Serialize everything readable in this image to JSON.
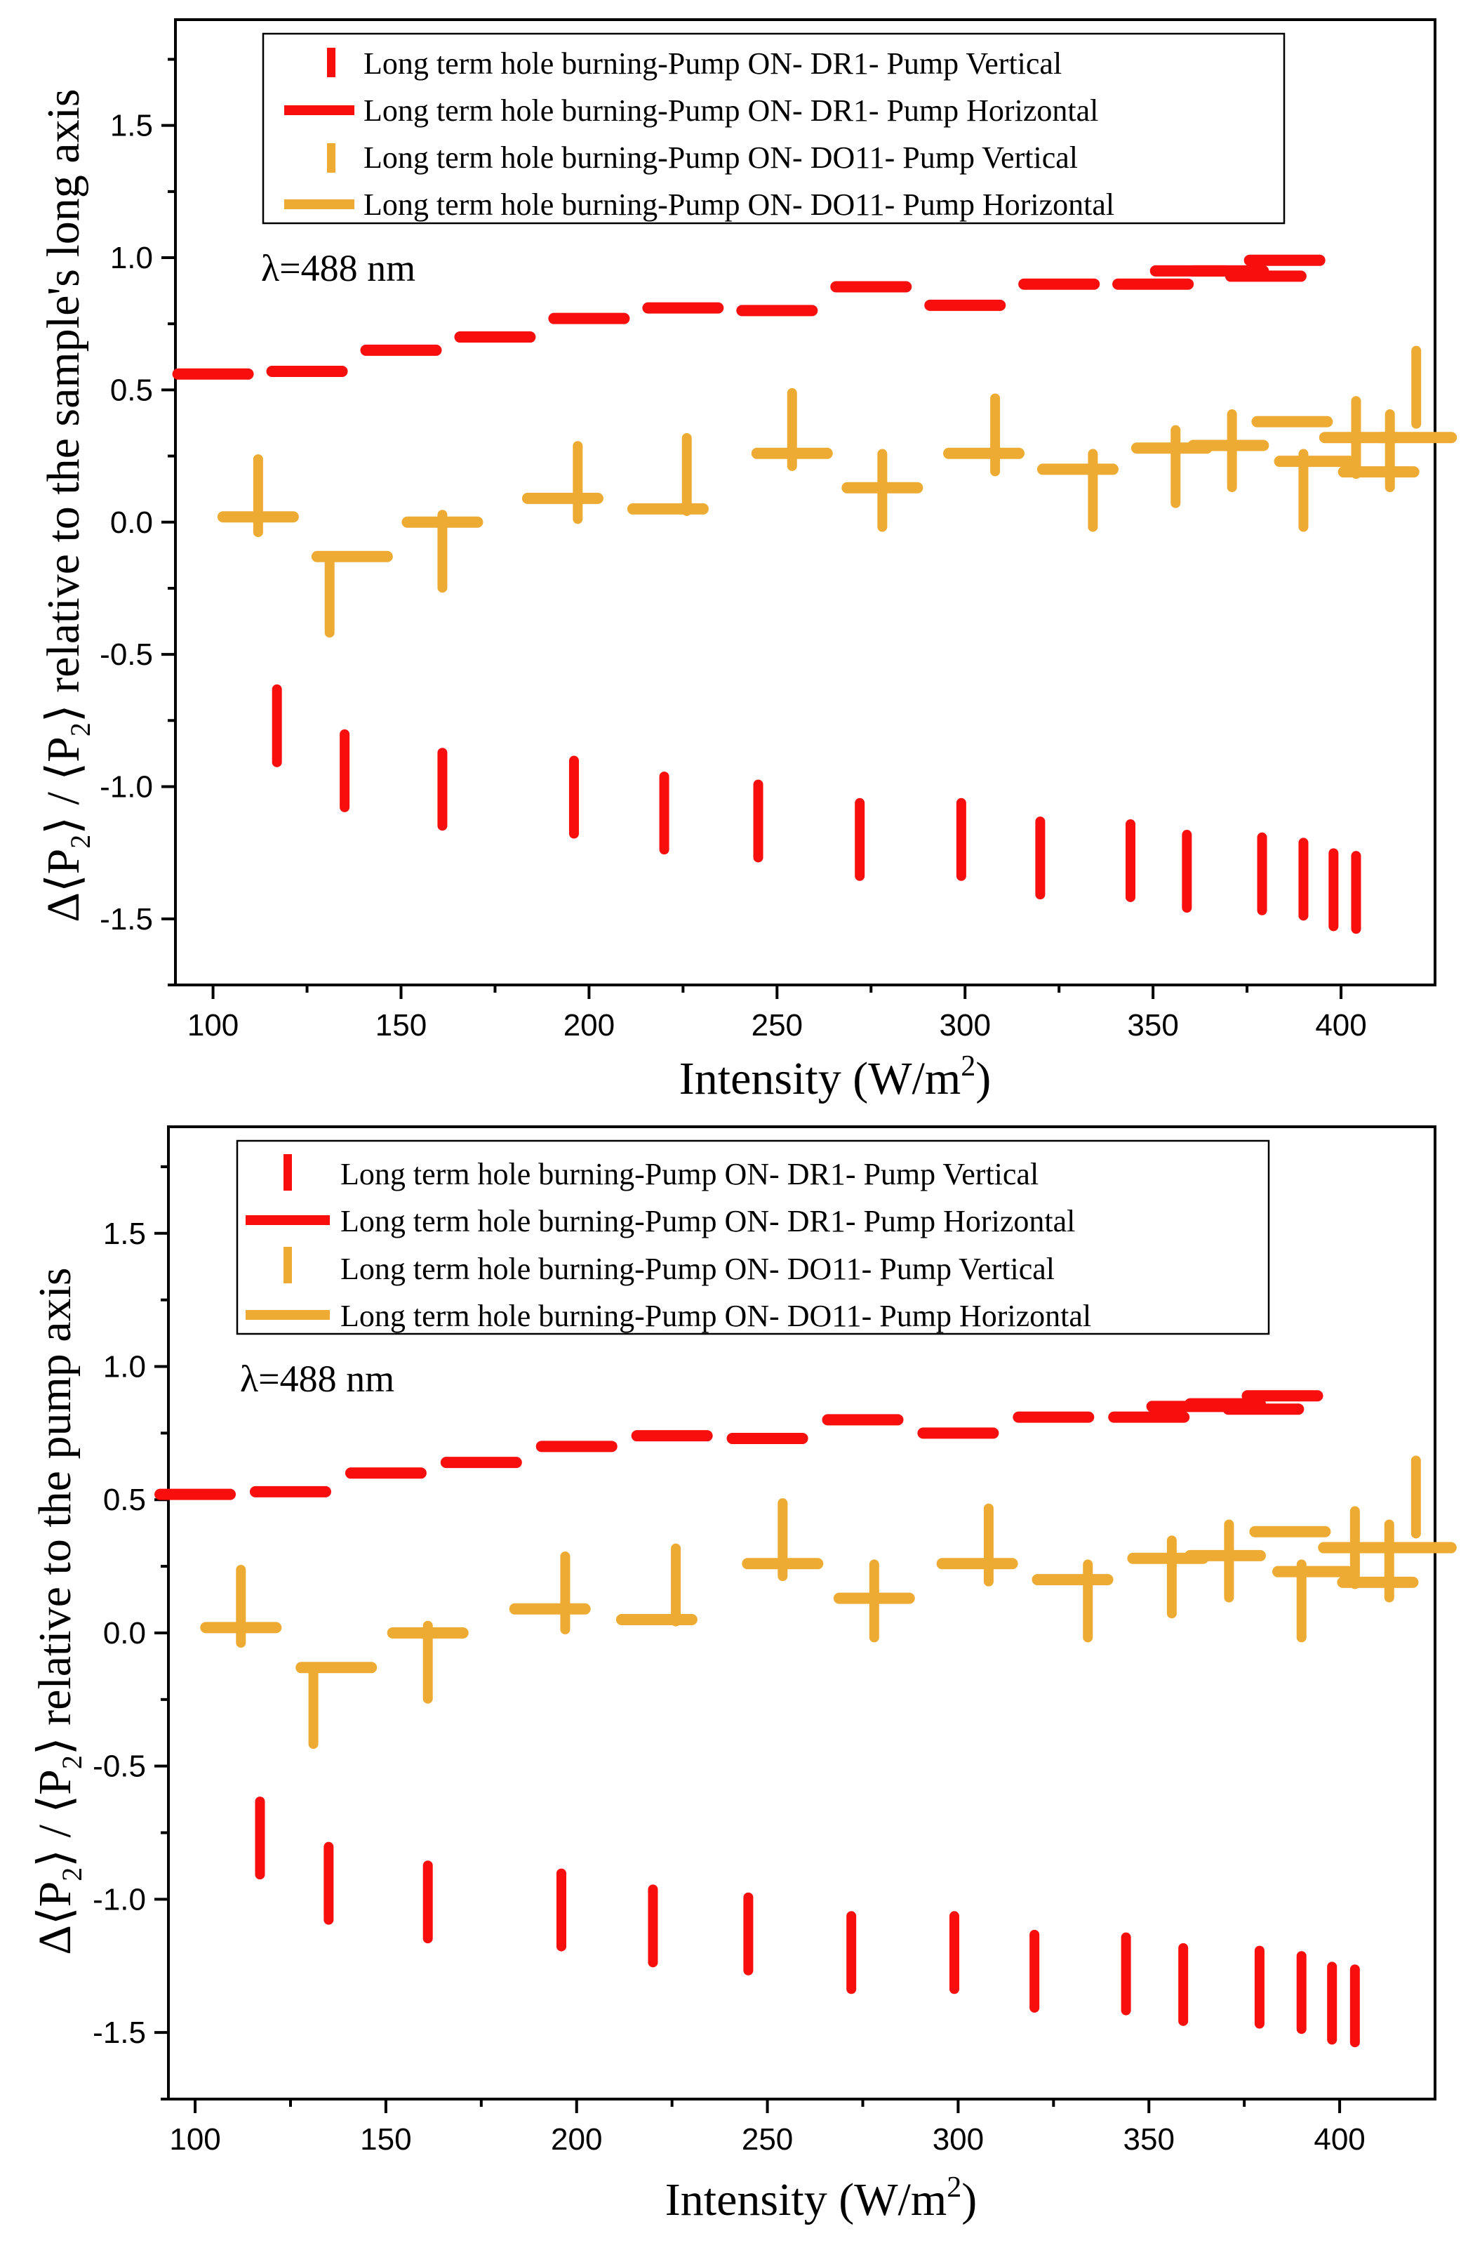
{
  "colors": {
    "dr1": "#f90e0e",
    "do11": "#eeab34",
    "axis": "#000000"
  },
  "legend_labels": [
    "Long term hole burning-Pump ON- DR1- Pump Vertical",
    "Long term hole burning-Pump ON- DR1- Pump Horizontal",
    "Long term hole burning-Pump ON- DO11- Pump Vertical",
    "Long term hole burning-Pump ON- DO11- Pump Horizontal"
  ],
  "chart_data": [
    {
      "type": "scatter",
      "title": "",
      "xlabel": "Intensity (W/m²)",
      "xlabel_base": "Intensity (W/m",
      "xlabel_sup": "2",
      "xlabel_tail": ")",
      "ylabel": "Δ⟨P₂⟩ / ⟨P₂⟩ relative to the sample's long axis",
      "ylabel_a": "Δ⟨P",
      "ylabel_a_sub": "2",
      "ylabel_b": "⟩ / ⟨P",
      "ylabel_b_sub": "2",
      "ylabel_c": "⟩ relative to the sample's long axis",
      "annotation": "λ=488 nm",
      "xlim": [
        90,
        425
      ],
      "ylim": [
        -1.75,
        1.9
      ],
      "xticks": [
        100,
        150,
        200,
        250,
        300,
        350,
        400
      ],
      "xtick_labels": [
        "100",
        "150",
        "200",
        "250",
        "300",
        "350",
        "400"
      ],
      "yticks": [
        -1.5,
        -1.0,
        -0.5,
        0.0,
        0.5,
        1.0,
        1.5
      ],
      "ytick_labels": [
        "-1.5",
        "-1.0",
        "-0.5",
        "0.0",
        "0.5",
        "1.0",
        "1.5"
      ],
      "series": [
        {
          "name": "Long term hole burning-Pump ON- DR1- Pump Vertical",
          "marker": "vbar",
          "x": [
            117,
            135,
            161,
            196,
            220,
            245,
            272,
            299,
            320,
            344,
            359,
            379,
            390,
            398,
            404
          ],
          "y": [
            -0.77,
            -0.94,
            -1.01,
            -1.04,
            -1.1,
            -1.13,
            -1.2,
            -1.2,
            -1.27,
            -1.28,
            -1.32,
            -1.33,
            -1.35,
            -1.39,
            -1.4
          ]
        },
        {
          "name": "Long term hole burning-Pump ON- DR1- Pump Horizontal",
          "marker": "hbar",
          "x": [
            100,
            125,
            150,
            175,
            200,
            225,
            250,
            275,
            300,
            325,
            350,
            360,
            370,
            380,
            385
          ],
          "y": [
            0.56,
            0.57,
            0.65,
            0.7,
            0.77,
            0.81,
            0.8,
            0.89,
            0.82,
            0.9,
            0.9,
            0.95,
            0.95,
            0.93,
            0.99
          ]
        },
        {
          "name": "Long term hole burning-Pump ON- DO11- Pump Vertical",
          "marker": "vbar",
          "x": [
            112,
            131,
            161,
            197,
            226,
            254,
            278,
            308,
            334,
            356,
            371,
            390,
            404,
            413,
            420
          ],
          "y": [
            0.1,
            -0.28,
            -0.11,
            0.15,
            0.18,
            0.35,
            0.12,
            0.33,
            0.12,
            0.21,
            0.27,
            0.12,
            0.32,
            0.27,
            0.51
          ]
        },
        {
          "name": "Long term hole burning-Pump ON- DO11- Pump Horizontal",
          "marker": "hbar",
          "x": [
            112,
            137,
            161,
            193,
            221,
            254,
            278,
            305,
            330,
            355,
            370,
            387,
            393,
            405,
            410,
            420
          ],
          "y": [
            0.02,
            -0.13,
            0.0,
            0.09,
            0.05,
            0.26,
            0.13,
            0.26,
            0.2,
            0.28,
            0.29,
            0.38,
            0.23,
            0.32,
            0.19,
            0.32
          ]
        }
      ]
    },
    {
      "type": "scatter",
      "title": "",
      "xlabel": "Intensity (W/m²)",
      "xlabel_base": "Intensity (W/m",
      "xlabel_sup": "2",
      "xlabel_tail": ")",
      "ylabel": "Δ⟨P₂⟩ / ⟨P₂⟩ relative to the pump axis",
      "ylabel_a": "Δ⟨P",
      "ylabel_a_sub": "2",
      "ylabel_b": "⟩ / ⟨P",
      "ylabel_b_sub": "2",
      "ylabel_c": "⟩ relative to the pump axis",
      "annotation": "λ=488 nm",
      "xlim": [
        93,
        425
      ],
      "ylim": [
        -1.75,
        1.9
      ],
      "xticks": [
        100,
        150,
        200,
        250,
        300,
        350,
        400
      ],
      "xtick_labels": [
        "100",
        "150",
        "200",
        "250",
        "300",
        "350",
        "400"
      ],
      "yticks": [
        -1.5,
        -1.0,
        -0.5,
        0.0,
        0.5,
        1.0,
        1.5
      ],
      "ytick_labels": [
        "-1.5",
        "-1.0",
        "-0.5",
        "0.0",
        "0.5",
        "1.0",
        "1.5"
      ],
      "series": [
        {
          "name": "Long term hole burning-Pump ON- DR1- Pump Vertical",
          "marker": "vbar",
          "x": [
            117,
            135,
            161,
            196,
            220,
            245,
            272,
            299,
            320,
            344,
            359,
            379,
            390,
            398,
            404
          ],
          "y": [
            -0.77,
            -0.94,
            -1.01,
            -1.04,
            -1.1,
            -1.13,
            -1.2,
            -1.2,
            -1.27,
            -1.28,
            -1.32,
            -1.33,
            -1.35,
            -1.39,
            -1.4
          ]
        },
        {
          "name": "Long term hole burning-Pump ON- DR1- Pump Horizontal",
          "marker": "hbar",
          "x": [
            100,
            125,
            150,
            175,
            200,
            225,
            250,
            275,
            300,
            325,
            350,
            360,
            370,
            380,
            385
          ],
          "y": [
            0.52,
            0.53,
            0.6,
            0.64,
            0.7,
            0.74,
            0.73,
            0.8,
            0.75,
            0.81,
            0.81,
            0.85,
            0.86,
            0.84,
            0.89
          ]
        },
        {
          "name": "Long term hole burning-Pump ON- DO11- Pump Vertical",
          "marker": "vbar",
          "x": [
            112,
            131,
            161,
            197,
            226,
            254,
            278,
            308,
            334,
            356,
            371,
            390,
            404,
            413,
            420
          ],
          "y": [
            0.1,
            -0.28,
            -0.11,
            0.15,
            0.18,
            0.35,
            0.12,
            0.33,
            0.12,
            0.21,
            0.27,
            0.12,
            0.32,
            0.27,
            0.51
          ]
        },
        {
          "name": "Long term hole burning-Pump ON- DO11- Pump Horizontal",
          "marker": "hbar",
          "x": [
            112,
            137,
            161,
            193,
            221,
            254,
            278,
            305,
            330,
            355,
            370,
            387,
            393,
            405,
            410,
            420
          ],
          "y": [
            0.02,
            -0.13,
            0.0,
            0.09,
            0.05,
            0.26,
            0.13,
            0.26,
            0.2,
            0.28,
            0.29,
            0.38,
            0.23,
            0.32,
            0.19,
            0.32
          ]
        }
      ]
    }
  ]
}
